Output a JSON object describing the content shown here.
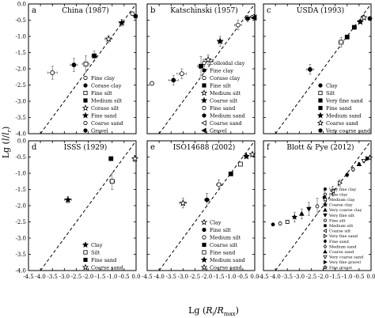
{
  "figure": {
    "ylabel": "Lg (l/l_r)",
    "xlabel": "Lg (R_i/R_max)"
  },
  "axes": {
    "xlim": [
      -4.5,
      0.0
    ],
    "ylim": [
      -4.0,
      0.0
    ],
    "xticks": [
      -4.5,
      -4.0,
      -3.5,
      -3.0,
      -2.5,
      -2.0,
      -1.5,
      -1.0,
      -0.5,
      0.0
    ],
    "yticks": [
      -4.0,
      -3.5,
      -3.0,
      -2.5,
      -2.0,
      -1.5,
      -1.0,
      -0.5,
      0.0
    ],
    "xtick_labels": [
      "-4.5",
      "-4.0",
      "-3.5",
      "-3.0",
      "-2.5",
      "-2.0",
      "-1.5",
      "-1.0",
      "-0.5",
      "0.0"
    ],
    "ytick_labels": [
      "-4.0",
      "-3.5",
      "-3.0",
      "-2.5",
      "-2.0",
      "-1.5",
      "-1.0",
      "-0.5",
      "0.0"
    ],
    "reference_line": "y = x (dashed)"
  },
  "chart_data": [
    {
      "type": "scatter",
      "panel": "a",
      "title": "China (1987)",
      "legend_position": "bottom-right",
      "series": [
        {
          "name": "Fine clay",
          "marker": "open-circle",
          "x": -3.5,
          "y": -2.12,
          "xerr": 0.2,
          "yerr": 0.2
        },
        {
          "name": "Corase clay",
          "marker": "filled-circle",
          "x": -2.6,
          "y": -1.88,
          "xerr": 0.15,
          "yerr": 0.2
        },
        {
          "name": "Fine silt",
          "marker": "open-square",
          "x": -2.1,
          "y": -1.85,
          "xerr": 0.15,
          "yerr": 0.25
        },
        {
          "name": "Medium silt",
          "marker": "filled-square",
          "x": -1.75,
          "y": -1.6,
          "xerr": 0.1,
          "yerr": 0.15
        },
        {
          "name": "Corase silt",
          "marker": "open-star",
          "x": -1.15,
          "y": -1.08,
          "xerr": 0.15,
          "yerr": 0.1
        },
        {
          "name": "Fine sand",
          "marker": "filled-star",
          "x": -0.6,
          "y": -0.58,
          "xerr": 0.1,
          "yerr": 0.1
        },
        {
          "name": "Coarse sand",
          "marker": "open-circle",
          "x": -0.15,
          "y": -0.3,
          "xerr": 0.05,
          "yerr": 0.05
        },
        {
          "name": "Gravel",
          "marker": "filled-circle",
          "x": -0.02,
          "y": -0.38,
          "xerr": 0.0,
          "yerr": 0.05
        }
      ]
    },
    {
      "type": "scatter",
      "panel": "b",
      "title": "Katschinski (1957)",
      "legend_position": "bottom-right",
      "series": [
        {
          "name": "Colloidal clay",
          "marker": "open-circle",
          "x": -4.3,
          "y": -2.45,
          "xerr": 0.0,
          "yerr": 0.0
        },
        {
          "name": "Fine clay",
          "marker": "filled-circle",
          "x": -3.4,
          "y": -2.35,
          "xerr": 0.2,
          "yerr": 0.15
        },
        {
          "name": "Corase clay",
          "marker": "open-circle",
          "x": -3.05,
          "y": -2.15,
          "xerr": 0.2,
          "yerr": 0.15
        },
        {
          "name": "Fine silt",
          "marker": "filled-square",
          "x": -2.25,
          "y": -1.92,
          "xerr": 0.15,
          "yerr": 0.3
        },
        {
          "name": "Medium silt",
          "marker": "open-star",
          "x": -1.95,
          "y": -1.72,
          "xerr": 0.2,
          "yerr": 0.15
        },
        {
          "name": "Coarse silt",
          "marker": "filled-star",
          "x": -1.45,
          "y": -1.15,
          "xerr": 0.1,
          "yerr": 0.15
        },
        {
          "name": "Fine sand",
          "marker": "open-circle",
          "x": -0.7,
          "y": -0.65,
          "xerr": 0.15,
          "yerr": 0.15
        },
        {
          "name": "Medium sand",
          "marker": "filled-circle",
          "x": -0.3,
          "y": -0.45,
          "xerr": 0.1,
          "yerr": 0.1
        },
        {
          "name": "Coarse sand",
          "marker": "open-triangle-left",
          "x": -0.1,
          "y": -0.4,
          "xerr": 0.05,
          "yerr": 0.05
        },
        {
          "name": "Gravel",
          "marker": "filled-triangle-left",
          "x": -0.02,
          "y": -0.42,
          "xerr": 0.0,
          "yerr": 0.05
        }
      ]
    },
    {
      "type": "scatter",
      "panel": "c",
      "title": "USDA (1993)",
      "legend_position": "bottom-right",
      "series": [
        {
          "name": "Clay",
          "marker": "filled-circle",
          "x": -2.55,
          "y": -2.02,
          "xerr": 0.15,
          "yerr": 0.15
        },
        {
          "name": "Silt",
          "marker": "open-square",
          "x": -1.25,
          "y": -1.18,
          "xerr": 0.1,
          "yerr": 0.15
        },
        {
          "name": "Very fine sand",
          "marker": "filled-square",
          "x": -1.0,
          "y": -1.02,
          "xerr": 0.05,
          "yerr": 0.05
        },
        {
          "name": "Fine sand",
          "marker": "filled-square",
          "x": -0.7,
          "y": -0.72,
          "xerr": 0.05,
          "yerr": 0.05
        },
        {
          "name": "Medium sand",
          "marker": "filled-star",
          "x": -0.45,
          "y": -0.55,
          "xerr": 0.05,
          "yerr": 0.05
        },
        {
          "name": "Coarse sand",
          "marker": "open-star",
          "x": -0.3,
          "y": -0.42,
          "xerr": 0.05,
          "yerr": 0.05
        },
        {
          "name": "Very coarse sand",
          "marker": "filled-circle",
          "x": -0.05,
          "y": -0.45,
          "xerr": 0.05,
          "yerr": 0.05
        }
      ]
    },
    {
      "type": "scatter",
      "panel": "d",
      "title": "ISSS (1929)",
      "legend_position": "bottom-right",
      "series": [
        {
          "name": "Clay",
          "marker": "filled-star",
          "x": -2.85,
          "y": -1.82,
          "xerr": 0.15,
          "yerr": 0.1
        },
        {
          "name": "Silt",
          "marker": "open-square",
          "x": -1.0,
          "y": -1.25,
          "xerr": 0.1,
          "yerr": 0.25
        },
        {
          "name": "Fine sand",
          "marker": "filled-square",
          "x": -1.05,
          "y": -0.55,
          "xerr": 0.05,
          "yerr": 0.05
        },
        {
          "name": "Coarse sand",
          "marker": "open-star",
          "x": -0.05,
          "y": -0.55,
          "xerr": 0.05,
          "yerr": 0.1
        }
      ]
    },
    {
      "type": "scatter",
      "panel": "e",
      "title": "ISO14688 (2002)",
      "legend_position": "bottom-right",
      "series": [
        {
          "name": "Clay",
          "marker": "open-star",
          "x": -3.0,
          "y": -1.92,
          "xerr": 0.15,
          "yerr": 0.15
        },
        {
          "name": "Fine silt",
          "marker": "filled-circle",
          "x": -2.0,
          "y": -1.82,
          "xerr": 0.1,
          "yerr": 0.2
        },
        {
          "name": "Medium silt",
          "marker": "open-circle",
          "x": -1.5,
          "y": -1.35,
          "xerr": 0.1,
          "yerr": 0.15
        },
        {
          "name": "Coarse silt",
          "marker": "filled-square",
          "x": -1.0,
          "y": -1.02,
          "xerr": 0.05,
          "yerr": 0.05
        },
        {
          "name": "Fine sand",
          "marker": "open-square",
          "x": -0.6,
          "y": -0.72,
          "xerr": 0.05,
          "yerr": 0.05
        },
        {
          "name": "Medium sand",
          "marker": "filled-star",
          "x": -0.35,
          "y": -0.48,
          "xerr": 0.05,
          "yerr": 0.05
        },
        {
          "name": "Coarse sand",
          "marker": "open-star",
          "x": -0.1,
          "y": -0.42,
          "xerr": 0.05,
          "yerr": 0.05
        }
      ]
    },
    {
      "type": "scatter",
      "panel": "f",
      "title": "Blott & Pye (2012)",
      "legend_position": "bottom-right",
      "series": [
        {
          "name": "Very fine clay",
          "marker": "filled-circle",
          "x": -4.1,
          "y": -2.58,
          "xerr": 0.0,
          "yerr": 0.0
        },
        {
          "name": "Fine clay",
          "marker": "open-circle",
          "x": -3.8,
          "y": -2.55,
          "xerr": 0.05,
          "yerr": 0.05
        },
        {
          "name": "Medium clay",
          "marker": "open-square",
          "x": -3.5,
          "y": -2.5,
          "xerr": 0.05,
          "yerr": 0.05
        },
        {
          "name": "Coarse clay",
          "marker": "filled-star",
          "x": -3.2,
          "y": -2.35,
          "xerr": 0.05,
          "yerr": 0.15
        },
        {
          "name": "Very coarse clay",
          "marker": "filled-triangle-up",
          "x": -2.9,
          "y": -2.25,
          "xerr": 0.05,
          "yerr": 0.15
        },
        {
          "name": "Very fine silt",
          "marker": "filled-triangle-down",
          "x": -2.6,
          "y": -2.1,
          "xerr": 0.05,
          "yerr": 0.2
        },
        {
          "name": "Fine silt",
          "marker": "open-circle",
          "x": -2.25,
          "y": -2.02,
          "xerr": 0.05,
          "yerr": 0.25
        },
        {
          "name": "Medium silt",
          "marker": "filled-circle",
          "x": -1.95,
          "y": -1.75,
          "xerr": 0.05,
          "yerr": 0.2
        },
        {
          "name": "Coarse silt",
          "marker": "open-triangle-left",
          "x": -1.6,
          "y": -1.55,
          "xerr": 0.05,
          "yerr": 0.15
        },
        {
          "name": "Very fine sand",
          "marker": "open-triangle-right",
          "x": -1.3,
          "y": -1.3,
          "xerr": 0.05,
          "yerr": 0.1
        },
        {
          "name": "Fine sand",
          "marker": "filled-diamond",
          "x": -1.0,
          "y": -1.05,
          "xerr": 0.05,
          "yerr": 0.05
        },
        {
          "name": "Medium sand",
          "marker": "open-diamond",
          "x": -0.75,
          "y": -0.88,
          "xerr": 0.05,
          "yerr": 0.05
        },
        {
          "name": "Coarse sand",
          "marker": "filled-triangle-up",
          "x": -0.5,
          "y": -0.72,
          "xerr": 0.05,
          "yerr": 0.05
        },
        {
          "name": "Very coarse sand",
          "marker": "open-triangle-down",
          "x": -0.3,
          "y": -0.62,
          "xerr": 0.05,
          "yerr": 0.05
        },
        {
          "name": "Very fine gravel",
          "marker": "filled-triangle-right",
          "x": -0.15,
          "y": -0.55,
          "xerr": 0.05,
          "yerr": 0.05
        },
        {
          "name": "Fine gravel",
          "marker": "open-star",
          "x": -0.05,
          "y": -0.52,
          "xerr": 0.05,
          "yerr": 0.05
        }
      ]
    }
  ]
}
